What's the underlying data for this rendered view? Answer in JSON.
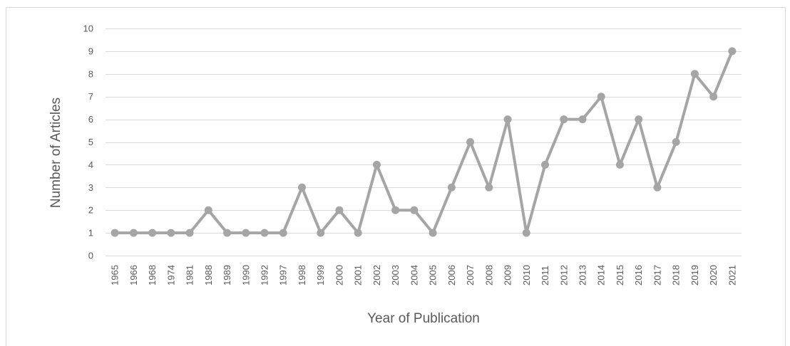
{
  "chart_data": {
    "type": "line",
    "title": "",
    "xlabel": "Year of Publication",
    "ylabel": "Number of Articles",
    "ylim": [
      0,
      10
    ],
    "yticks": [
      0,
      1,
      2,
      3,
      4,
      5,
      6,
      7,
      8,
      9,
      10
    ],
    "grid": true,
    "legend": "none",
    "categories": [
      "1965",
      "1966",
      "1968",
      "1974",
      "1981",
      "1988",
      "1989",
      "1990",
      "1992",
      "1997",
      "1998",
      "1999",
      "2000",
      "2001",
      "2002",
      "2003",
      "2004",
      "2005",
      "2006",
      "2007",
      "2008",
      "2009",
      "2010",
      "2011",
      "2012",
      "2013",
      "2014",
      "2015",
      "2016",
      "2017",
      "2018",
      "2019",
      "2020",
      "2021"
    ],
    "series": [
      {
        "values": [
          1,
          1,
          1,
          1,
          1,
          2,
          1,
          1,
          1,
          1,
          3,
          1,
          2,
          1,
          4,
          2,
          2,
          1,
          3,
          5,
          3,
          6,
          1,
          4,
          6,
          6,
          7,
          4,
          6,
          3,
          5,
          8,
          7,
          9
        ]
      }
    ],
    "colors": {
      "series": "#a5a5a5",
      "grid": "#d9d9d9",
      "text": "#595959"
    }
  }
}
